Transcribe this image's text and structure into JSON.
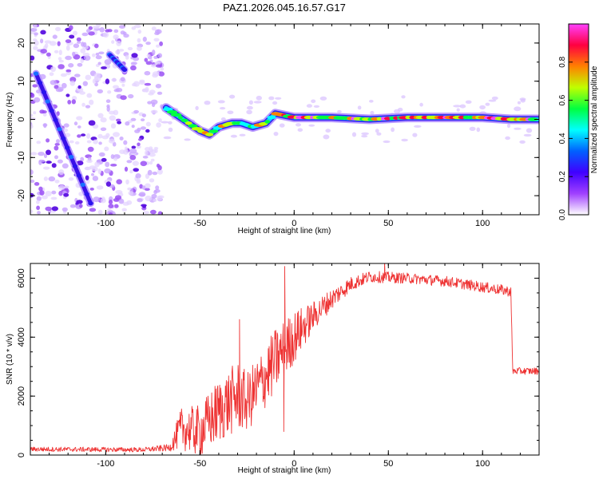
{
  "page": {
    "title": "PAZ1.2026.045.16.57.G17"
  },
  "chart_data": [
    {
      "type": "heatmap",
      "name": "spectrogram",
      "title": "PAZ1.2026.045.16.57.G17",
      "xlabel": "Height of straight line (km)",
      "ylabel": "Frequency (Hz)",
      "xlim": [
        -140,
        130
      ],
      "ylim": [
        -25,
        25
      ],
      "x_ticks": [
        -100,
        -50,
        0,
        50,
        100
      ],
      "y_ticks": [
        20,
        10,
        0,
        -10,
        -20
      ],
      "colorbar": {
        "label": "Normalized spectral amplitude",
        "range": [
          0,
          1
        ],
        "ticks": [
          "0.0",
          "0.2",
          "0.4",
          "0.6",
          "0.8"
        ],
        "tick_values": [
          0,
          0.2,
          0.4,
          0.6,
          0.8
        ],
        "stops": [
          "#ffffff",
          "#a040ff",
          "#4000ff",
          "#0060ff",
          "#00ffff",
          "#00ff40",
          "#c0ff00",
          "#ff8000",
          "#ff0040",
          "#ff40ff"
        ]
      },
      "features": [
        {
          "label": "descending tone",
          "from": [
            -137,
            12
          ],
          "to": [
            -108,
            -22
          ],
          "amplitude": 0.15
        },
        {
          "label": "short upper tone",
          "from": [
            -98,
            17
          ],
          "to": [
            -90,
            13
          ],
          "amplitude": 0.12
        },
        {
          "label": "scattered noise region",
          "x_range": [
            -140,
            -70
          ],
          "amplitude": 0.05
        },
        {
          "label": "main tone",
          "track": [
            [
              -68,
              3
            ],
            [
              -62,
              1
            ],
            [
              -56,
              -1
            ],
            [
              -50,
              -3
            ],
            [
              -45,
              -4
            ],
            [
              -40,
              -2
            ],
            [
              -33,
              -1
            ],
            [
              -28,
              -1
            ],
            [
              -22,
              -2
            ],
            [
              -15,
              -1
            ],
            [
              -10,
              1.5
            ],
            [
              -5,
              1
            ],
            [
              0,
              0.5
            ],
            [
              20,
              0.5
            ],
            [
              40,
              0
            ],
            [
              60,
              0.5
            ],
            [
              80,
              0.5
            ],
            [
              100,
              0.5
            ],
            [
              115,
              0
            ],
            [
              130,
              0
            ]
          ]
        }
      ]
    },
    {
      "type": "line",
      "name": "snr",
      "xlabel": "Height of straight line (km)",
      "ylabel": "SNR (10 * v/v)",
      "xlim": [
        -140,
        130
      ],
      "ylim": [
        0,
        6500
      ],
      "x_ticks": [
        -100,
        -50,
        0,
        50,
        100
      ],
      "y_ticks": [
        0,
        2000,
        4000,
        6000
      ],
      "color": "#ee3333",
      "envelope": {
        "x": [
          -140,
          -80,
          -66,
          -60,
          -50,
          -40,
          -30,
          -25,
          -20,
          -10,
          -5,
          0,
          10,
          20,
          30,
          40,
          60,
          80,
          100,
          115,
          116,
          130
        ],
        "y": [
          200,
          180,
          250,
          900,
          800,
          1500,
          2000,
          1800,
          2200,
          3200,
          3600,
          4000,
          4700,
          5300,
          5800,
          6050,
          6000,
          5900,
          5700,
          5550,
          2850,
          2850
        ],
        "noise": [
          80,
          80,
          120,
          700,
          900,
          1100,
          1200,
          1000,
          1100,
          1100,
          1000,
          900,
          500,
          350,
          250,
          200,
          180,
          180,
          180,
          180,
          120,
          120
        ]
      },
      "spikes": [
        {
          "x": -29,
          "y": 4600
        },
        {
          "x": -5,
          "y": 6400
        },
        {
          "x": -5.5,
          "y": 800
        },
        {
          "x": 48,
          "y": 6600
        }
      ]
    }
  ]
}
